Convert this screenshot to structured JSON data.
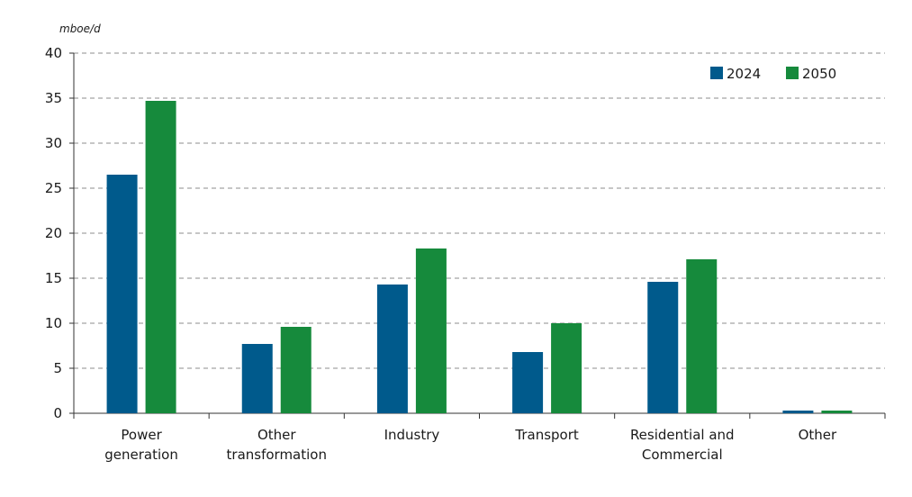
{
  "chart_data": {
    "type": "bar",
    "ylabel": "mboe/d",
    "ylim": [
      0,
      40
    ],
    "yticks": [
      0,
      5,
      10,
      15,
      20,
      25,
      30,
      35,
      40
    ],
    "grid": "horizontal-dashed",
    "legend_position": "top-right",
    "categories": [
      [
        "Power",
        "generation"
      ],
      [
        "Other",
        "transformation"
      ],
      [
        "Industry"
      ],
      [
        "Transport"
      ],
      [
        "Residential and",
        "Commercial"
      ],
      [
        "Other"
      ]
    ],
    "series": [
      {
        "name": "2024",
        "color": "#005a8c",
        "values": [
          26.5,
          7.7,
          14.3,
          6.8,
          14.6,
          0.3
        ]
      },
      {
        "name": "2050",
        "color": "#168a3c",
        "values": [
          34.7,
          9.6,
          18.3,
          10.0,
          17.1,
          0.3
        ]
      }
    ]
  }
}
